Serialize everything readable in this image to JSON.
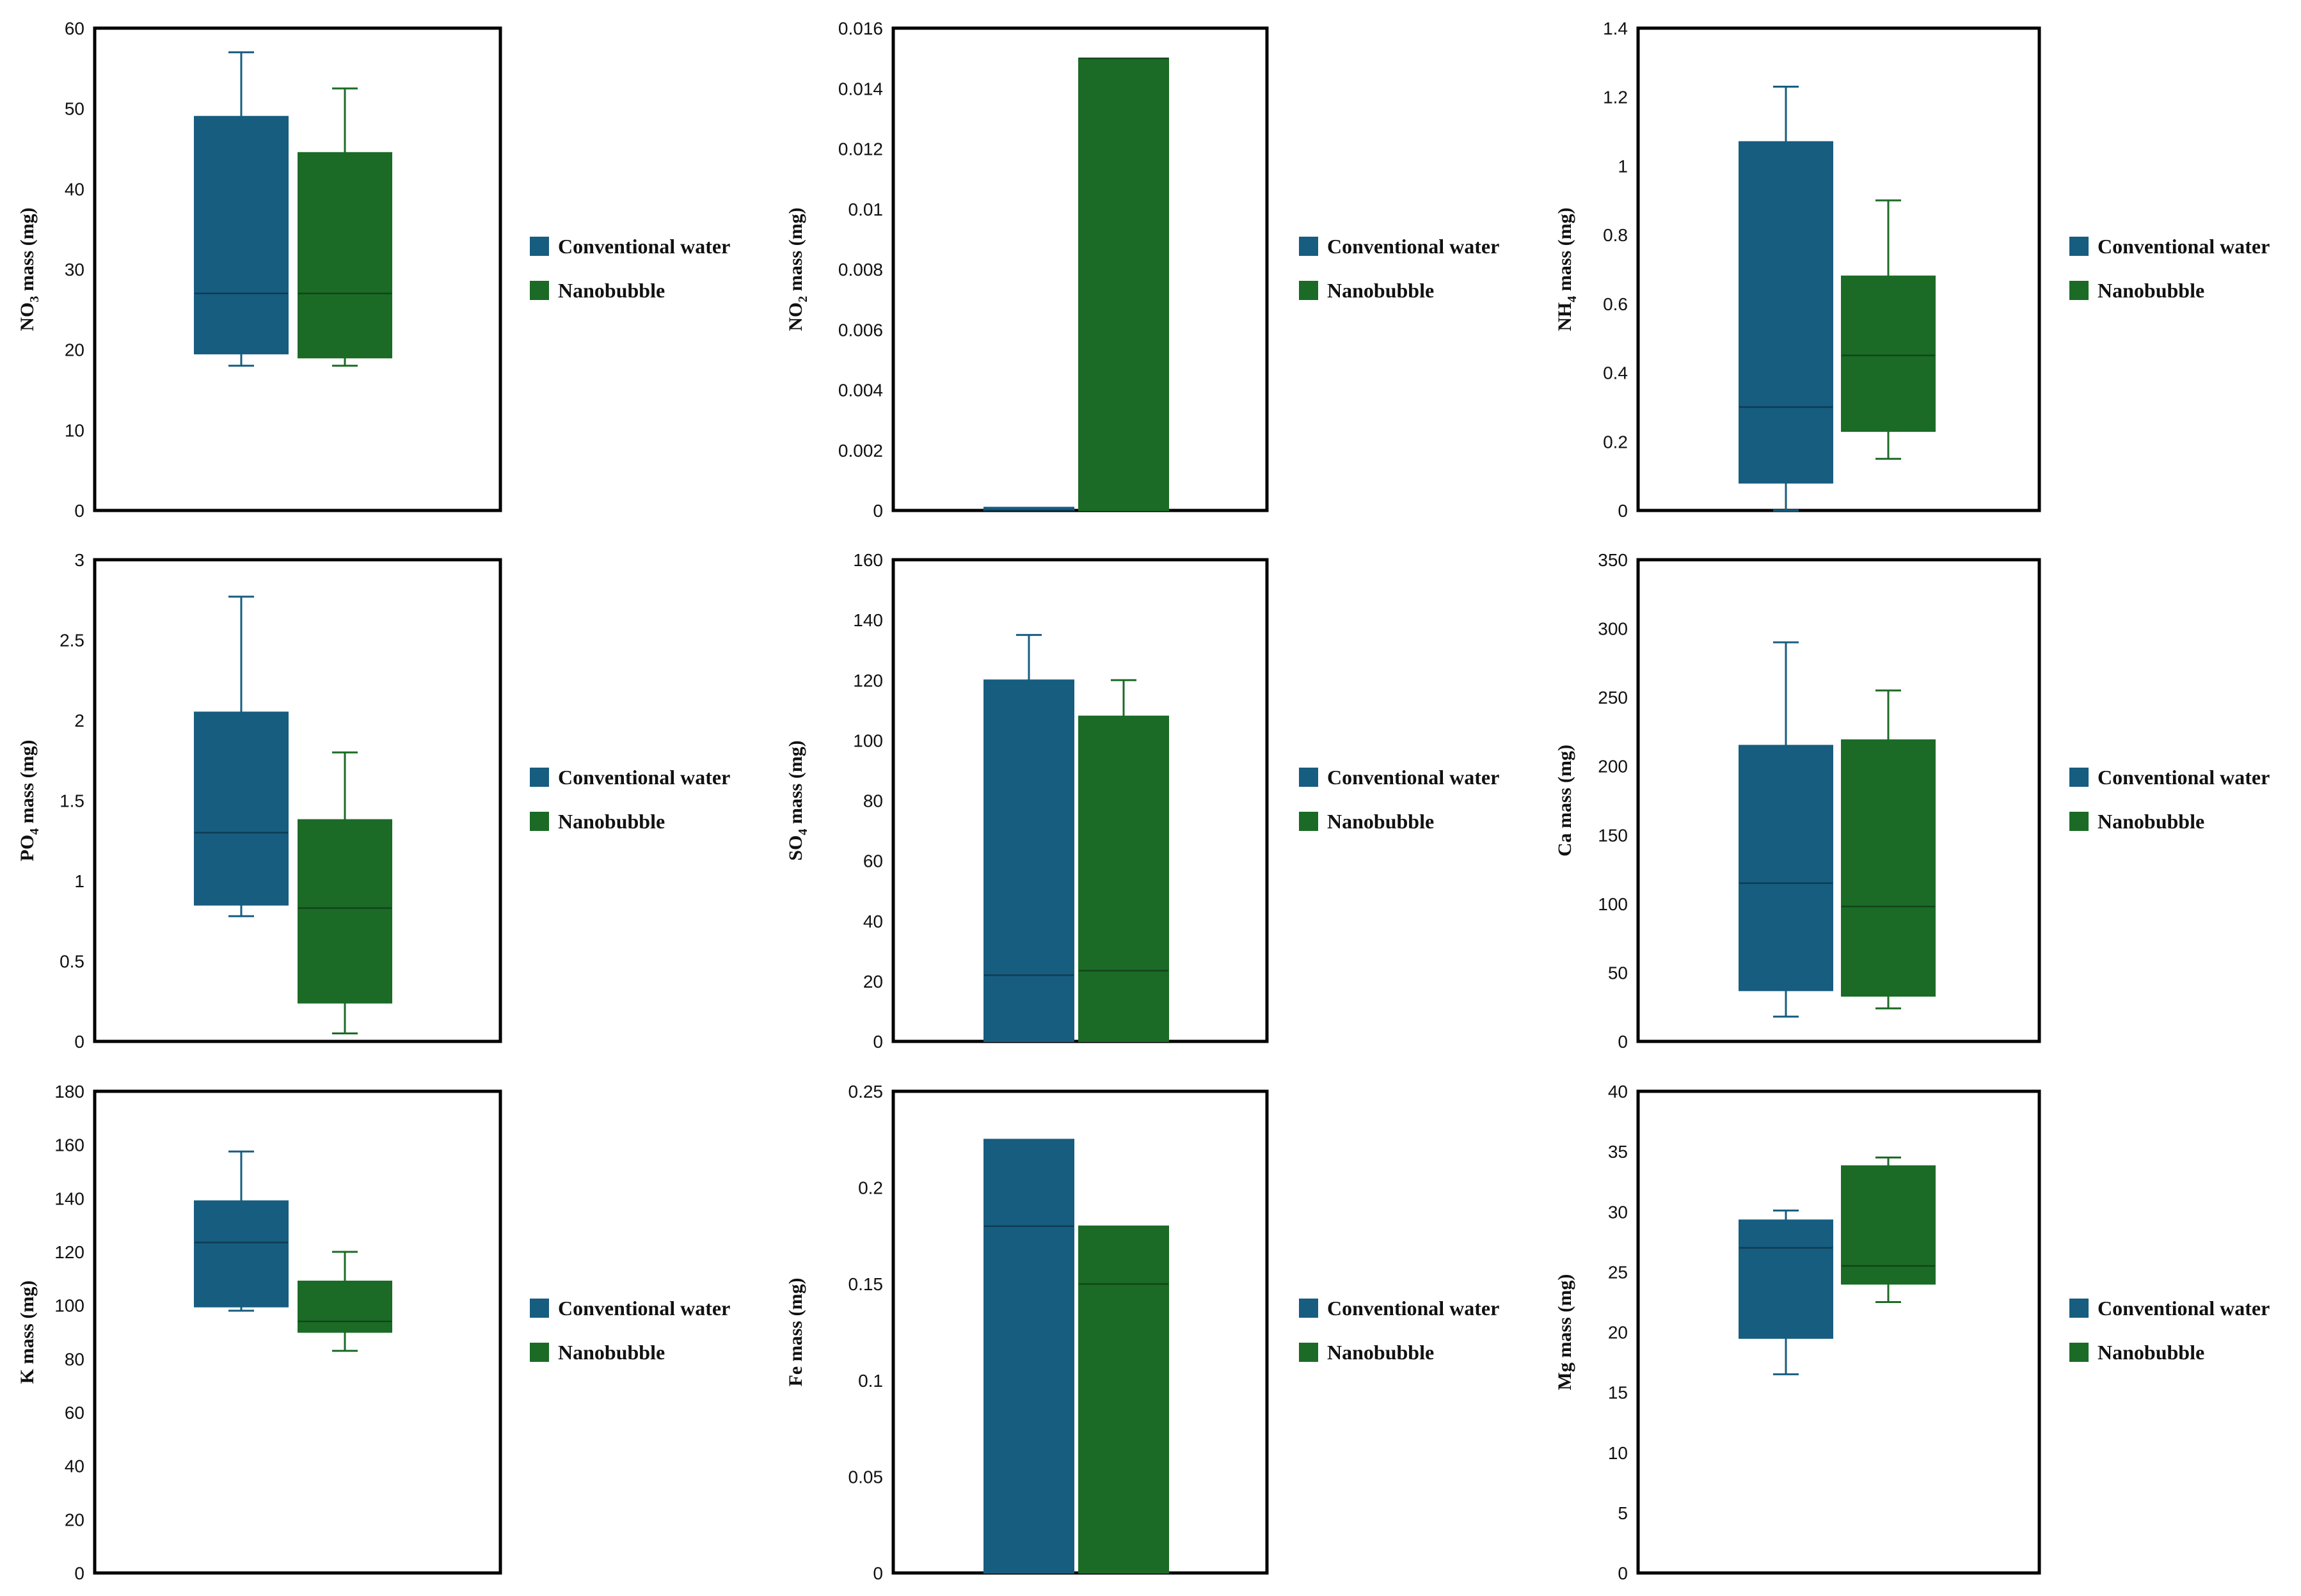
{
  "colors": {
    "conventional": "#175d80",
    "nanobubble": "#1b6b26"
  },
  "legend": {
    "conventional": "Conventional water",
    "nanobubble": "Nanobubble"
  },
  "chart_data": [
    {
      "type": "box",
      "ylabel": "NO3 mass (mg)",
      "ylabel_main": "NO",
      "ylabel_sub": "3",
      "ylabel_rest": " mass (mg)",
      "ylim": [
        0,
        60
      ],
      "ticks": [
        0,
        10,
        20,
        30,
        40,
        50,
        60
      ],
      "tick_labels": [
        "0",
        "10",
        "20",
        "30",
        "40",
        "50",
        "60"
      ],
      "series": [
        {
          "name": "Conventional water",
          "min": 18,
          "q1": 19.5,
          "median": 27,
          "q3": 49,
          "max": 57
        },
        {
          "name": "Nanobubble",
          "min": 18,
          "q1": 19,
          "median": 27,
          "q3": 44.5,
          "max": 52.5
        }
      ]
    },
    {
      "type": "box",
      "ylabel": "NO2 mass (mg)",
      "ylabel_main": "NO",
      "ylabel_sub": "2",
      "ylabel_rest": " mass (mg)",
      "ylim": [
        0,
        0.016
      ],
      "ticks": [
        0,
        0.002,
        0.004,
        0.006,
        0.008,
        0.01,
        0.012,
        0.014,
        0.016
      ],
      "tick_labels": [
        "0",
        "0.002",
        "0.004",
        "0.006",
        "0.008",
        "0.01",
        "0.012",
        "0.014",
        "0.016"
      ],
      "series": [
        {
          "name": "Conventional water",
          "min": 0,
          "q1": 0,
          "median": 0,
          "q3": 0.0001,
          "max": 0.0001
        },
        {
          "name": "Nanobubble",
          "min": 0,
          "q1": 0,
          "median": 0.015,
          "q3": 0.015,
          "max": 0.015
        }
      ]
    },
    {
      "type": "box",
      "ylabel": "NH4 mass (mg)",
      "ylabel_main": "NH",
      "ylabel_sub": "4",
      "ylabel_rest": " mass (mg)",
      "ylim": [
        0,
        1.4
      ],
      "ticks": [
        0,
        0.2,
        0.4,
        0.6,
        0.8,
        1,
        1.2,
        1.4
      ],
      "tick_labels": [
        "0",
        "0.2",
        "0.4",
        "0.6",
        "0.8",
        "1",
        "1.2",
        "1.4"
      ],
      "series": [
        {
          "name": "Conventional water",
          "min": 0,
          "q1": 0.08,
          "median": 0.3,
          "q3": 1.07,
          "max": 1.23
        },
        {
          "name": "Nanobubble",
          "min": 0.15,
          "q1": 0.23,
          "median": 0.45,
          "q3": 0.68,
          "max": 0.9
        }
      ]
    },
    {
      "type": "box",
      "ylabel": "PO4 mass (mg)",
      "ylabel_main": "PO",
      "ylabel_sub": "4",
      "ylabel_rest": " mass (mg)",
      "ylim": [
        0,
        3
      ],
      "ticks": [
        0,
        0.5,
        1,
        1.5,
        2,
        2.5,
        3
      ],
      "tick_labels": [
        "0",
        "0.5",
        "1",
        "1.5",
        "2",
        "2.5",
        "3"
      ],
      "series": [
        {
          "name": "Conventional water",
          "min": 0.78,
          "q1": 0.85,
          "median": 1.3,
          "q3": 2.05,
          "max": 2.77
        },
        {
          "name": "Nanobubble",
          "min": 0.05,
          "q1": 0.24,
          "median": 0.83,
          "q3": 1.38,
          "max": 1.8
        }
      ]
    },
    {
      "type": "box",
      "ylabel": "SO4 mass (mg)",
      "ylabel_main": "SO",
      "ylabel_sub": "4",
      "ylabel_rest": " mass (mg)",
      "ylim": [
        0,
        160
      ],
      "ticks": [
        0,
        20,
        40,
        60,
        80,
        100,
        120,
        140,
        160
      ],
      "tick_labels": [
        "0",
        "20",
        "40",
        "60",
        "80",
        "100",
        "120",
        "140",
        "160"
      ],
      "series": [
        {
          "name": "Conventional water",
          "min": 0,
          "q1": 0,
          "median": 22,
          "q3": 120,
          "max": 135
        },
        {
          "name": "Nanobubble",
          "min": 0,
          "q1": 0,
          "median": 23.5,
          "q3": 108,
          "max": 120
        }
      ]
    },
    {
      "type": "box",
      "ylabel": "Ca mass (mg)",
      "ylabel_main": "Ca",
      "ylabel_sub": "",
      "ylabel_rest": " mass (mg)",
      "ylim": [
        0,
        350
      ],
      "ticks": [
        0,
        50,
        100,
        150,
        200,
        250,
        300,
        350
      ],
      "tick_labels": [
        "0",
        "50",
        "100",
        "150",
        "200",
        "250",
        "300",
        "350"
      ],
      "series": [
        {
          "name": "Conventional water",
          "min": 18,
          "q1": 37,
          "median": 115,
          "q3": 215,
          "max": 290
        },
        {
          "name": "Nanobubble",
          "min": 24,
          "q1": 33,
          "median": 98,
          "q3": 219,
          "max": 255
        }
      ]
    },
    {
      "type": "box",
      "ylabel": "K mass (mg)",
      "ylabel_main": "K",
      "ylabel_sub": "",
      "ylabel_rest": " mass (mg)",
      "ylim": [
        0,
        180
      ],
      "ticks": [
        0,
        20,
        40,
        60,
        80,
        100,
        120,
        140,
        160,
        180
      ],
      "tick_labels": [
        "0",
        "20",
        "40",
        "60",
        "80",
        "100",
        "120",
        "140",
        "160",
        "180"
      ],
      "series": [
        {
          "name": "Conventional water",
          "min": 98,
          "q1": 99.5,
          "median": 123.5,
          "q3": 139,
          "max": 157.5
        },
        {
          "name": "Nanobubble",
          "min": 83,
          "q1": 90,
          "median": 94,
          "q3": 109,
          "max": 120
        }
      ]
    },
    {
      "type": "box",
      "ylabel": "Fe mass (mg)",
      "ylabel_main": "Fe",
      "ylabel_sub": "",
      "ylabel_rest": " mass (mg)",
      "ylim": [
        0,
        0.25
      ],
      "ticks": [
        0,
        0.05,
        0.1,
        0.15,
        0.2,
        0.25
      ],
      "tick_labels": [
        "0",
        "0.05",
        "0.1",
        "0.15",
        "0.2",
        "0.25"
      ],
      "series": [
        {
          "name": "Conventional water",
          "min": 0,
          "q1": 0,
          "median": 0.18,
          "q3": 0.225,
          "max": 0.225
        },
        {
          "name": "Nanobubble",
          "min": 0,
          "q1": 0,
          "median": 0.15,
          "q3": 0.18,
          "max": 0.18
        }
      ]
    },
    {
      "type": "box",
      "ylabel": "Mg mass (mg)",
      "ylabel_main": "Mg",
      "ylabel_sub": "",
      "ylabel_rest": " mass (mg)",
      "ylim": [
        0,
        40
      ],
      "ticks": [
        0,
        5,
        10,
        15,
        20,
        25,
        30,
        35,
        40
      ],
      "tick_labels": [
        "0",
        "5",
        "10",
        "15",
        "20",
        "25",
        "30",
        "35",
        "40"
      ],
      "series": [
        {
          "name": "Conventional water",
          "min": 16.5,
          "q1": 19.5,
          "median": 27,
          "q3": 29.3,
          "max": 30.1
        },
        {
          "name": "Nanobubble",
          "min": 22.5,
          "q1": 24,
          "median": 25.5,
          "q3": 33.8,
          "max": 34.5
        }
      ]
    }
  ]
}
